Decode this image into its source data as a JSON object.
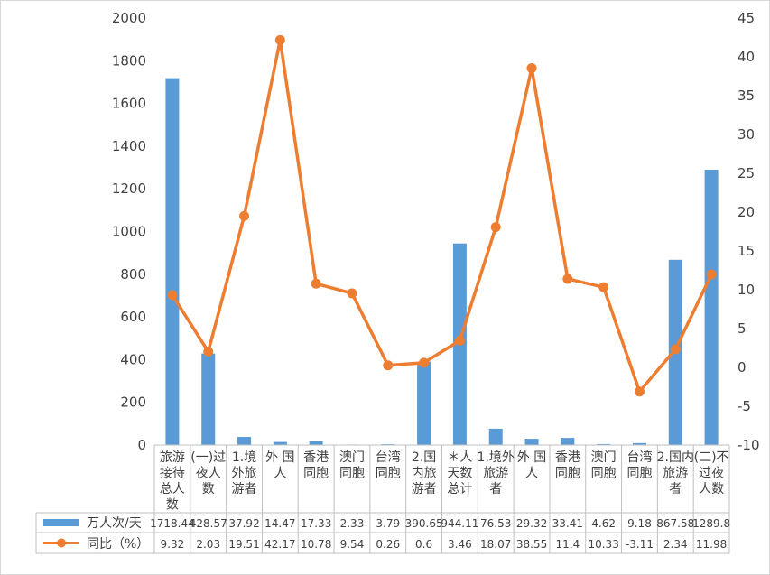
{
  "chart_data": {
    "type": "bar+line",
    "categories": [
      [
        "旅游",
        "接待",
        "总人",
        "数"
      ],
      [
        "(一)过",
        "夜人",
        "数"
      ],
      [
        "1.境",
        "外旅",
        "游者"
      ],
      [
        "外 国",
        "人"
      ],
      [
        "香港",
        "同胞"
      ],
      [
        "澳门",
        "同胞"
      ],
      [
        "台湾",
        "同胞"
      ],
      [
        "2.国",
        "内旅",
        "游者"
      ],
      [
        "＊人",
        "天数",
        "总计"
      ],
      [
        "1.境外",
        "旅游",
        "者"
      ],
      [
        "外 国",
        "人"
      ],
      [
        "香港",
        "同胞"
      ],
      [
        "澳门",
        "同胞"
      ],
      [
        "台湾",
        "同胞"
      ],
      [
        "2.国内",
        "旅游",
        "者"
      ],
      [
        "(二)不",
        "过夜",
        "人数"
      ]
    ],
    "series": [
      {
        "name": "万人次/天",
        "type": "bar",
        "axis": "left",
        "color": "#5b9bd5",
        "values": [
          1718.44,
          428.57,
          37.92,
          14.47,
          17.33,
          2.33,
          3.79,
          390.65,
          944.11,
          76.53,
          29.32,
          33.41,
          4.62,
          9.18,
          867.58,
          1289.8
        ],
        "labels": [
          "1718.44",
          "428.57",
          "37.92",
          "14.47",
          "17.33",
          "2.33",
          "3.79",
          "390.65",
          "944.11",
          "76.53",
          "29.32",
          "33.41",
          "4.62",
          "9.18",
          "867.58",
          "1289.8"
        ]
      },
      {
        "name": "同比（%）",
        "type": "line",
        "axis": "right",
        "color": "#ed7d31",
        "values": [
          9.32,
          2.03,
          19.51,
          42.17,
          10.78,
          9.54,
          0.26,
          0.6,
          3.46,
          18.07,
          38.55,
          11.4,
          10.33,
          -3.11,
          2.34,
          11.98
        ],
        "labels": [
          "9.32",
          "2.03",
          "19.51",
          "42.17",
          "10.78",
          "9.54",
          "0.26",
          "0.6",
          "3.46",
          "18.07",
          "38.55",
          "11.4",
          "10.33",
          "-3.11",
          "2.34",
          "11.98"
        ]
      }
    ],
    "y_left": {
      "min": 0,
      "max": 2000,
      "step": 200,
      "ticks": [
        "0",
        "200",
        "400",
        "600",
        "800",
        "1000",
        "1200",
        "1400",
        "1600",
        "1800",
        "2000"
      ]
    },
    "y_right": {
      "min": -10,
      "max": 45,
      "step": 5,
      "ticks": [
        "-10",
        "-5",
        "0",
        "5",
        "10",
        "15",
        "20",
        "25",
        "30",
        "35",
        "40",
        "45"
      ]
    },
    "grid": false,
    "legend": "data-table-bottom"
  }
}
